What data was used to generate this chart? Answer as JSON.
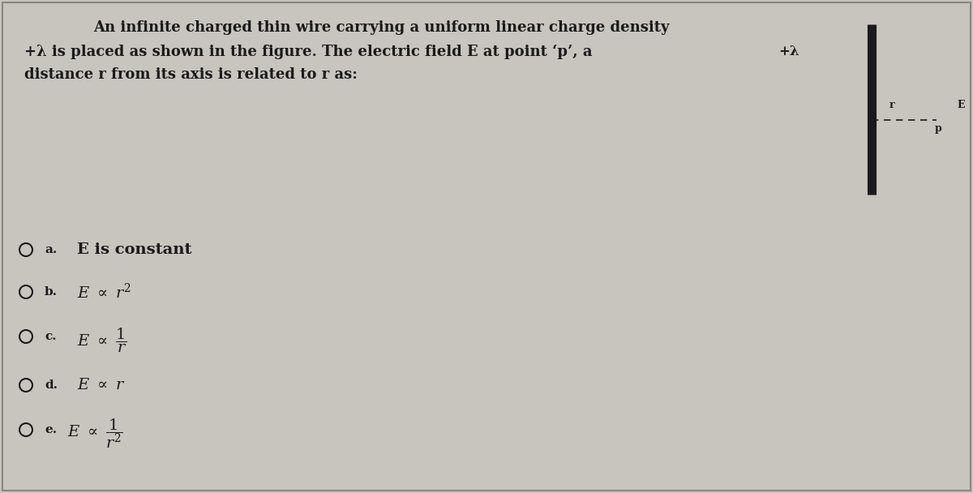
{
  "bg_color": "#c8c4be",
  "border_color": "#888880",
  "text_color": "#1a1a1a",
  "question_line1": "An infinite charged thin wire carrying a uniform linear charge density",
  "question_line2": "+λ is placed as shown in the figure. The electric field E at point ‘p’, a",
  "question_line3": "distance r from its axis is related to r as:",
  "diagram_lambda": "+λ",
  "diagram_r": "r",
  "diagram_E": "E",
  "diagram_p": "p",
  "wire_color": "#1a1a1a",
  "option_labels": [
    "a.",
    "b.",
    "c.",
    "d.",
    "e."
  ],
  "option_a_text": "E is constant",
  "option_b_latex": "$E\\ \\propto\\ r^2$",
  "option_c_latex": "$E\\ \\propto\\ \\dfrac{1}{r}$",
  "option_d_latex": "$E\\ \\propto\\ r$",
  "option_e_latex": "$E\\ \\propto\\ \\dfrac{1}{r^2}$"
}
